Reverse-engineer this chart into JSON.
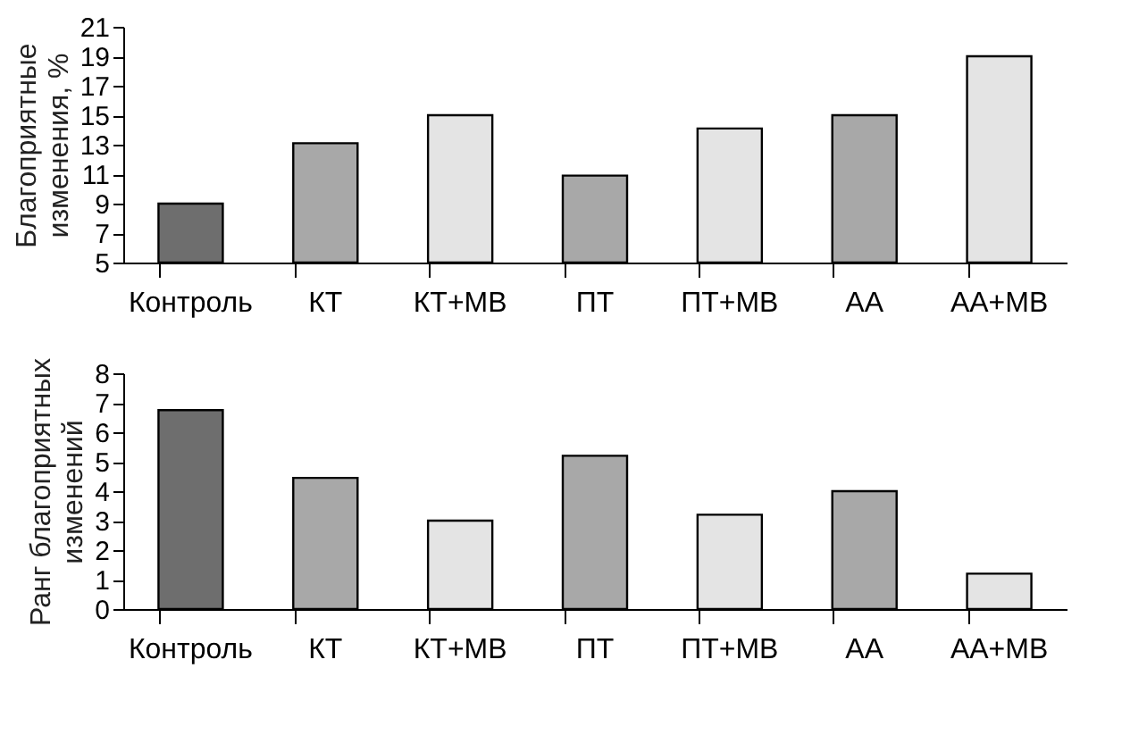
{
  "chart_data": [
    {
      "type": "bar",
      "ylabel": "Благоприятные\nизменения, %",
      "categories": [
        "Контроль",
        "КТ",
        "КТ+МВ",
        "ПТ",
        "ПТ+МВ",
        "АА",
        "АА+МВ"
      ],
      "values": [
        9,
        13.1,
        15,
        10.9,
        14.1,
        15,
        19
      ],
      "colors": [
        "#6e6e6e",
        "#a8a8a8",
        "#e4e4e4",
        "#a8a8a8",
        "#e4e4e4",
        "#a8a8a8",
        "#e4e4e4"
      ],
      "ylim": [
        5,
        21
      ],
      "yticks": [
        5,
        7,
        9,
        11,
        13,
        15,
        17,
        19,
        21
      ],
      "grid": false
    },
    {
      "type": "bar",
      "ylabel": "Ранг благоприятных\nизменений",
      "categories": [
        "Контроль",
        "КТ",
        "КТ+МВ",
        "ПТ",
        "ПТ+МВ",
        "АА",
        "АА+МВ"
      ],
      "values": [
        6.75,
        4.45,
        3.0,
        5.2,
        3.2,
        4.0,
        1.2
      ],
      "colors": [
        "#6e6e6e",
        "#a8a8a8",
        "#e4e4e4",
        "#a8a8a8",
        "#e4e4e4",
        "#a8a8a8",
        "#e4e4e4"
      ],
      "ylim": [
        0,
        8
      ],
      "yticks": [
        0,
        1,
        2,
        3,
        4,
        5,
        6,
        7,
        8
      ],
      "grid": false
    }
  ]
}
